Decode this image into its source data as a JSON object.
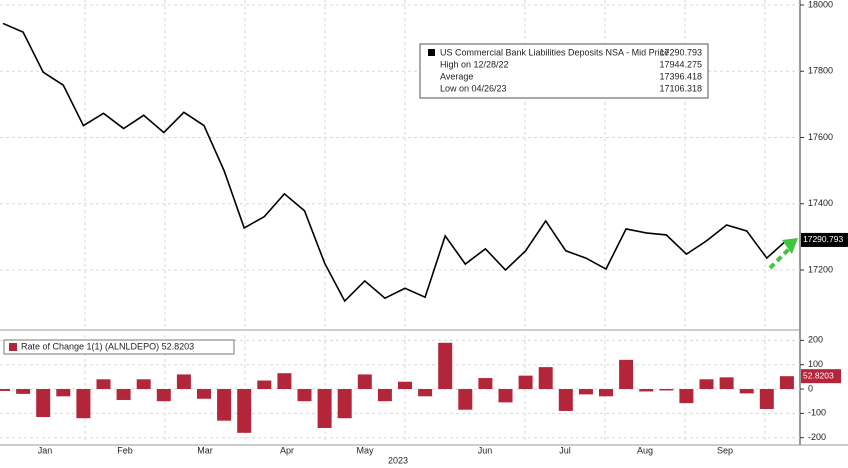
{
  "chart_data": [
    {
      "type": "line",
      "color": "#000000",
      "values": [
        17944.275,
        17918,
        17797,
        17758,
        17636,
        17673,
        17627,
        17667,
        17615,
        17676,
        17636,
        17500,
        17327,
        17361,
        17430,
        17379,
        17221,
        17106.318,
        17167,
        17115,
        17145,
        17118,
        17303,
        17218,
        17264,
        17200,
        17258,
        17348,
        17258,
        17236,
        17203,
        17324,
        17312,
        17306,
        17248,
        17288,
        17336,
        17318,
        17236,
        17290.793
      ],
      "ylim": [
        17025,
        18015
      ],
      "yticks": [
        17200,
        17400,
        17600,
        17800,
        18000
      ],
      "grid": true,
      "legend": {
        "title": "US Commercial Bank Liabilities Deposits NSA - Mid Price",
        "title_value": 17290.793,
        "items": [
          {
            "label": "High on 12/28/22",
            "value": 17944.275
          },
          {
            "label": "Average",
            "value": 17396.418
          },
          {
            "label": "Low on 04/26/23",
            "value": 17106.318
          }
        ]
      }
    },
    {
      "type": "bar",
      "color": "#b3263a",
      "name": "Rate of Change 1(1) (ALNLDEPO) 52.8203",
      "values": [
        -8,
        -20,
        -115,
        -30,
        -120,
        40,
        -45,
        40,
        -50,
        60,
        -40,
        -130,
        -180,
        35,
        65,
        -50,
        -160,
        -120,
        60,
        -50,
        30,
        -30,
        190,
        -85,
        45,
        -55,
        55,
        90,
        -90,
        -22,
        -30,
        120,
        -10,
        -6,
        -58,
        40,
        48,
        -18,
        -82,
        52.8203
      ],
      "ylim": [
        -230,
        222
      ],
      "yticks": [
        -200,
        -100,
        0,
        100,
        200
      ],
      "grid": true,
      "xticks": [
        "Jan",
        "Feb",
        "Mar",
        "Apr",
        "May",
        "Jun",
        "Jul",
        "Aug",
        "Sep"
      ],
      "xlabel": "2023"
    }
  ]
}
